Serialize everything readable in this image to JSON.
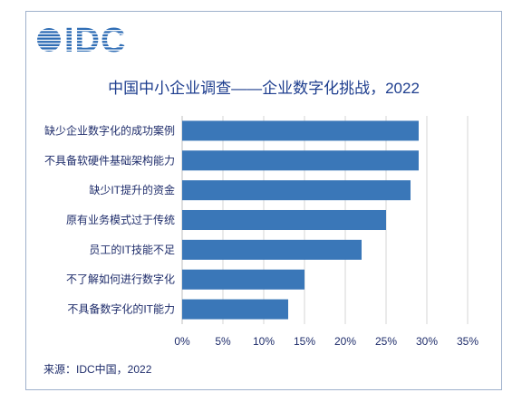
{
  "logo": {
    "text": "IDC",
    "icon": "idc-globe-icon",
    "color": "#2f6db5"
  },
  "chart_data": {
    "type": "bar",
    "horizontal": true,
    "title": "中国中小企业调查——企业数字化挑战，2022",
    "categories": [
      "缺少企业数字化的成功案例",
      "不具备软硬件基础架构能力",
      "缺少IT提升的资金",
      "原有业务模式过于传统",
      "员工的IT技能不足",
      "不了解如何进行数字化",
      "不具备数字化的IT能力"
    ],
    "values": [
      29,
      29,
      28,
      25,
      22,
      15,
      13
    ],
    "xlim": [
      0,
      35
    ],
    "xticks": [
      0,
      5,
      10,
      15,
      20,
      25,
      30,
      35
    ],
    "xtick_labels": [
      "0%",
      "5%",
      "10%",
      "15%",
      "20%",
      "25%",
      "30%",
      "35%"
    ],
    "grid": true,
    "legend": false,
    "bar_color": "#3a77b8"
  },
  "source": "来源：IDC中国，2022",
  "colors": {
    "title": "#1d3d8e",
    "label": "#1f2d6b",
    "grid": "#d6d6d6",
    "axis": "#bfbfbf",
    "frame": "#9fb1cc"
  }
}
